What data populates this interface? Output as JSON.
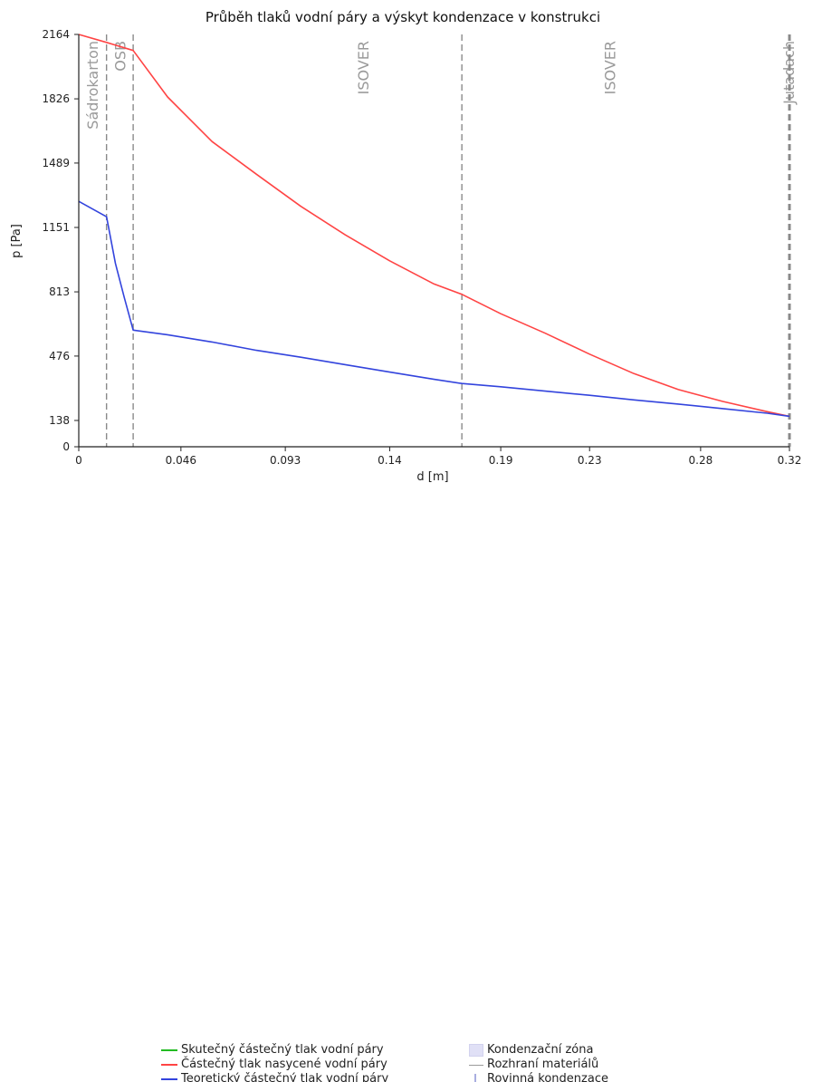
{
  "chart_data": {
    "type": "line",
    "title": "Průběh tlaků vodní páry a výskyt kondenzace v konstrukci",
    "xlabel": "d [m]",
    "ylabel": "p [Pa]",
    "xlim": [
      0,
      0.32
    ],
    "ylim": [
      0,
      2164
    ],
    "x_ticks": [
      "0",
      "0.046",
      "0.093",
      "0.14",
      "0.19",
      "0.23",
      "0.28",
      "0.32"
    ],
    "x_tick_values": [
      0,
      0.046,
      0.093,
      0.14,
      0.19,
      0.23,
      0.28,
      0.32
    ],
    "y_ticks": [
      "0",
      "138",
      "476",
      "813",
      "1151",
      "1489",
      "1826",
      "2164"
    ],
    "y_tick_values": [
      0,
      138,
      476,
      813,
      1151,
      1489,
      1826,
      2164
    ],
    "boundaries": [
      0,
      0.0125,
      0.0245,
      0.1725,
      0.32
    ],
    "layers": [
      {
        "name": "Sádrokarton",
        "x": 0.0062
      },
      {
        "name": "OSB",
        "x": 0.0185
      },
      {
        "name": "ISOVER",
        "x": 0.128
      },
      {
        "name": "ISOVER",
        "x": 0.239
      },
      {
        "name": "Jutadach",
        "x": 0.3195
      }
    ],
    "series": [
      {
        "name": "Skutečný částečný tlak vodní páry",
        "color": "#22bb22",
        "x": [],
        "values": []
      },
      {
        "name": "Částečný tlak nasycené vodní páry",
        "color": "#ff4444",
        "x": [
          0,
          0.0125,
          0.0245,
          0.04,
          0.06,
          0.08,
          0.1,
          0.12,
          0.14,
          0.16,
          0.1725,
          0.19,
          0.21,
          0.23,
          0.25,
          0.27,
          0.29,
          0.31,
          0.32
        ],
        "values": [
          2164,
          2122,
          2080,
          1836,
          1602,
          1430,
          1262,
          1112,
          976,
          854,
          800,
          698,
          596,
          486,
          384,
          300,
          238,
          184,
          160
        ]
      },
      {
        "name": "Teoretický částečný tlak vodní páry",
        "color": "#3344dd",
        "x": [
          0,
          0.0125,
          0.0165,
          0.0205,
          0.0245,
          0.04,
          0.06,
          0.08,
          0.1,
          0.12,
          0.14,
          0.16,
          0.1725,
          0.19,
          0.21,
          0.23,
          0.25,
          0.27,
          0.29,
          0.31,
          0.32
        ],
        "values": [
          1288,
          1207,
          962,
          783,
          612,
          588,
          550,
          506,
          470,
          431,
          392,
          354,
          332,
          315,
          292,
          270,
          246,
          224,
          200,
          176,
          160
        ]
      }
    ],
    "legend": {
      "placement": "bottom",
      "items": [
        "Skutečný částečný tlak vodní páry",
        "Částečný tlak nasycené vodní páry",
        "Teoretický částečný tlak vodní páry",
        "Kondenzační zóna",
        "Rozhraní materiálů",
        "Rovinná kondenzace"
      ],
      "colors": {
        "actual": "#22bb22",
        "saturated": "#ff4444",
        "theoretical": "#3344dd",
        "condensation_zone": "#e0e0f6",
        "material_boundary": "#9a9a9a",
        "plane_condensation": "#a9aee0"
      }
    },
    "grid": false
  }
}
